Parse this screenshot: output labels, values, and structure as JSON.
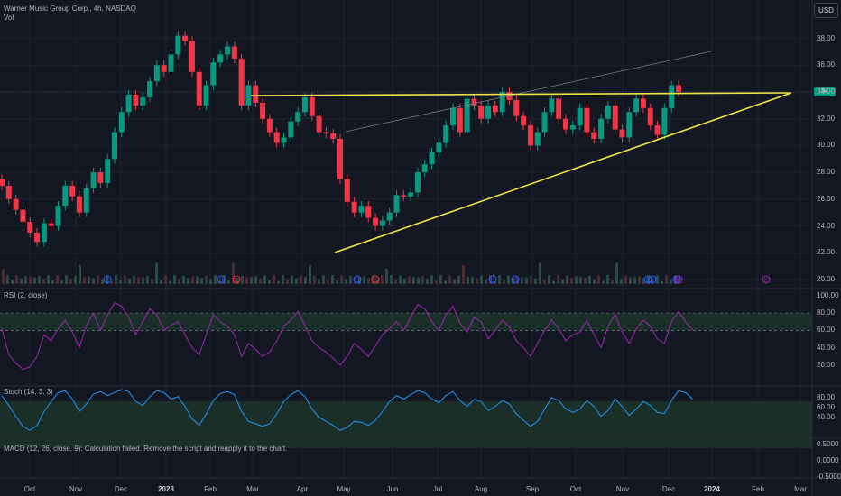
{
  "header": {
    "symbol_line": "Warner Music Group Corp., 4h, NASDAQ",
    "volume_label": "Vol",
    "currency_button": "USD",
    "last_price_tag": "34"
  },
  "price_axis": {
    "ticks": [
      "38.00",
      "36.00",
      "34.00",
      "32.00",
      "30.00",
      "28.00",
      "26.00",
      "24.00",
      "22.00",
      "20.00"
    ]
  },
  "indicators": {
    "rsi": {
      "label": "RSI (2, close)",
      "ticks": [
        "100.00",
        "80.00",
        "60.00",
        "40.00",
        "20.00"
      ]
    },
    "stoch": {
      "label": "Stoch (14, 3, 3)",
      "ticks": [
        "80.00",
        "60.00",
        "40.00"
      ]
    },
    "macd": {
      "label": "MACD (12, 26, close, 9): Calculation failed. Remove the script and reapply it to the chart.",
      "ticks": [
        "0.5000",
        "0.0000",
        "-0.5000"
      ]
    }
  },
  "time_axis": {
    "ticks": [
      {
        "label": "Oct",
        "bold": false
      },
      {
        "label": "Nov",
        "bold": false
      },
      {
        "label": "Dec",
        "bold": false
      },
      {
        "label": "2023",
        "bold": true
      },
      {
        "label": "Feb",
        "bold": false
      },
      {
        "label": "Mar",
        "bold": false
      },
      {
        "label": "Apr",
        "bold": false
      },
      {
        "label": "May",
        "bold": false
      },
      {
        "label": "Jun",
        "bold": false
      },
      {
        "label": "Jul",
        "bold": false
      },
      {
        "label": "Aug",
        "bold": false
      },
      {
        "label": "Sep",
        "bold": false
      },
      {
        "label": "Oct",
        "bold": false
      },
      {
        "label": "Nov",
        "bold": false
      },
      {
        "label": "Dec",
        "bold": false
      },
      {
        "label": "2024",
        "bold": true
      },
      {
        "label": "Feb",
        "bold": false
      },
      {
        "label": "Mar",
        "bold": false
      }
    ]
  },
  "event_markers": [
    {
      "kind": "E",
      "color": "#2962ff"
    },
    {
      "kind": "D",
      "color": "#2962ff"
    },
    {
      "kind": "E",
      "color": "#f23645"
    },
    {
      "kind": "D",
      "color": "#2962ff"
    },
    {
      "kind": "E",
      "color": "#f23645"
    },
    {
      "kind": "D",
      "color": "#2962ff"
    },
    {
      "kind": "E",
      "color": "#2962ff"
    },
    {
      "kind": "D",
      "color": "#2962ff"
    },
    {
      "kind": "E",
      "color": "#2962ff"
    },
    {
      "kind": "D",
      "color": "#2962ff"
    },
    {
      "kind": "E",
      "color": "#9c27b0"
    },
    {
      "kind": "E",
      "color": "#9c27b0"
    }
  ],
  "price_series": [
    [
      27.5,
      27.0
    ],
    [
      27.0,
      26.0
    ],
    [
      26.0,
      25.2
    ],
    [
      25.2,
      24.3
    ],
    [
      24.3,
      23.5
    ],
    [
      23.5,
      22.8
    ],
    [
      22.8,
      24.2
    ],
    [
      24.2,
      24.0
    ],
    [
      24.0,
      25.5
    ],
    [
      25.5,
      27.0
    ],
    [
      27.0,
      26.2
    ],
    [
      26.2,
      25.0
    ],
    [
      25.0,
      26.8
    ],
    [
      26.8,
      28.0
    ],
    [
      28.0,
      27.2
    ],
    [
      27.2,
      29.0
    ],
    [
      29.0,
      31.0
    ],
    [
      31.0,
      32.5
    ],
    [
      32.5,
      33.8
    ],
    [
      33.8,
      33.0
    ],
    [
      33.0,
      33.6
    ],
    [
      33.6,
      34.8
    ],
    [
      34.8,
      36.0
    ],
    [
      36.0,
      35.5
    ],
    [
      35.5,
      36.8
    ],
    [
      36.8,
      38.2
    ],
    [
      38.2,
      37.8
    ],
    [
      37.8,
      35.5
    ],
    [
      35.5,
      33.0
    ],
    [
      33.0,
      34.5
    ],
    [
      34.5,
      36.2
    ],
    [
      36.2,
      36.8
    ],
    [
      36.8,
      37.4
    ],
    [
      37.4,
      36.5
    ],
    [
      36.5,
      33.0
    ],
    [
      33.0,
      34.5
    ],
    [
      34.5,
      33.2
    ],
    [
      33.2,
      32.0
    ],
    [
      32.0,
      31.0
    ],
    [
      31.0,
      30.2
    ],
    [
      30.2,
      30.6
    ],
    [
      30.6,
      31.8
    ],
    [
      31.8,
      32.5
    ],
    [
      32.5,
      33.6
    ],
    [
      33.6,
      32.2
    ],
    [
      32.2,
      31.0
    ],
    [
      31.0,
      30.9
    ],
    [
      30.9,
      30.5
    ],
    [
      30.5,
      27.5
    ],
    [
      27.5,
      25.8
    ],
    [
      25.8,
      25.0
    ],
    [
      25.0,
      25.5
    ],
    [
      25.5,
      24.6
    ],
    [
      24.6,
      24.0
    ],
    [
      24.0,
      24.4
    ],
    [
      24.4,
      25.0
    ],
    [
      25.0,
      26.3
    ],
    [
      26.3,
      26.2
    ],
    [
      26.2,
      26.5
    ],
    [
      26.5,
      28.0
    ],
    [
      28.0,
      28.6
    ],
    [
      28.6,
      29.5
    ],
    [
      29.5,
      30.2
    ],
    [
      30.2,
      31.5
    ],
    [
      31.5,
      32.8
    ],
    [
      32.8,
      31.0
    ],
    [
      31.0,
      33.5
    ],
    [
      33.5,
      33.0
    ],
    [
      33.0,
      32.0
    ],
    [
      32.0,
      33.0
    ],
    [
      33.0,
      32.5
    ],
    [
      32.5,
      34.0
    ],
    [
      34.0,
      33.4
    ],
    [
      33.4,
      32.2
    ],
    [
      32.2,
      31.5
    ],
    [
      31.5,
      30.0
    ],
    [
      30.0,
      31.0
    ],
    [
      31.0,
      32.5
    ],
    [
      32.5,
      33.5
    ],
    [
      33.5,
      32.0
    ],
    [
      32.0,
      31.2
    ],
    [
      31.2,
      31.5
    ],
    [
      31.5,
      32.8
    ],
    [
      32.8,
      31.0
    ],
    [
      31.0,
      30.5
    ],
    [
      30.5,
      32.0
    ],
    [
      32.0,
      33.0
    ],
    [
      33.0,
      31.2
    ],
    [
      31.2,
      30.6
    ],
    [
      30.6,
      32.5
    ],
    [
      32.5,
      33.5
    ],
    [
      33.5,
      32.8
    ],
    [
      32.8,
      31.5
    ],
    [
      31.5,
      30.8
    ],
    [
      30.8,
      32.8
    ],
    [
      32.8,
      34.5
    ],
    [
      34.5,
      34.0
    ]
  ],
  "rsi_series": [
    62,
    32,
    22,
    15,
    18,
    30,
    55,
    48,
    62,
    72,
    58,
    40,
    66,
    80,
    60,
    78,
    92,
    88,
    75,
    55,
    70,
    85,
    78,
    60,
    66,
    70,
    55,
    40,
    32,
    55,
    78,
    70,
    65,
    55,
    30,
    45,
    38,
    30,
    35,
    48,
    65,
    72,
    82,
    66,
    48,
    40,
    35,
    28,
    20,
    30,
    45,
    38,
    30,
    42,
    55,
    62,
    70,
    60,
    75,
    90,
    85,
    70,
    60,
    78,
    88,
    68,
    58,
    75,
    70,
    50,
    60,
    72,
    64,
    48,
    40,
    30,
    45,
    60,
    72,
    62,
    48,
    55,
    58,
    72,
    55,
    40,
    65,
    78,
    58,
    45,
    62,
    72,
    65,
    50,
    45,
    70,
    82,
    70,
    60
  ],
  "stoch_series": [
    82,
    62,
    40,
    20,
    12,
    22,
    50,
    70,
    88,
    92,
    75,
    50,
    65,
    85,
    90,
    82,
    88,
    94,
    90,
    70,
    62,
    80,
    92,
    88,
    75,
    80,
    60,
    35,
    22,
    45,
    72,
    86,
    90,
    84,
    50,
    30,
    25,
    20,
    25,
    45,
    70,
    84,
    92,
    80,
    55,
    38,
    30,
    22,
    12,
    18,
    30,
    28,
    22,
    32,
    50,
    70,
    82,
    75,
    84,
    92,
    88,
    75,
    68,
    82,
    90,
    72,
    60,
    74,
    70,
    52,
    60,
    72,
    65,
    45,
    32,
    20,
    30,
    55,
    78,
    72,
    55,
    48,
    55,
    72,
    60,
    40,
    52,
    75,
    60,
    42,
    55,
    70,
    62,
    48,
    46,
    72,
    92,
    88,
    75
  ],
  "drawings": {
    "resistance_line_color": "#f0e24a",
    "support_line_color": "#f0e24a",
    "channel_line_color": "#787b86"
  },
  "colors": {
    "up": "#089981",
    "down": "#f23645",
    "rsi_line": "#9c27b0",
    "stoch_line": "#2196f3",
    "band_fill": "#1e3a2b"
  }
}
